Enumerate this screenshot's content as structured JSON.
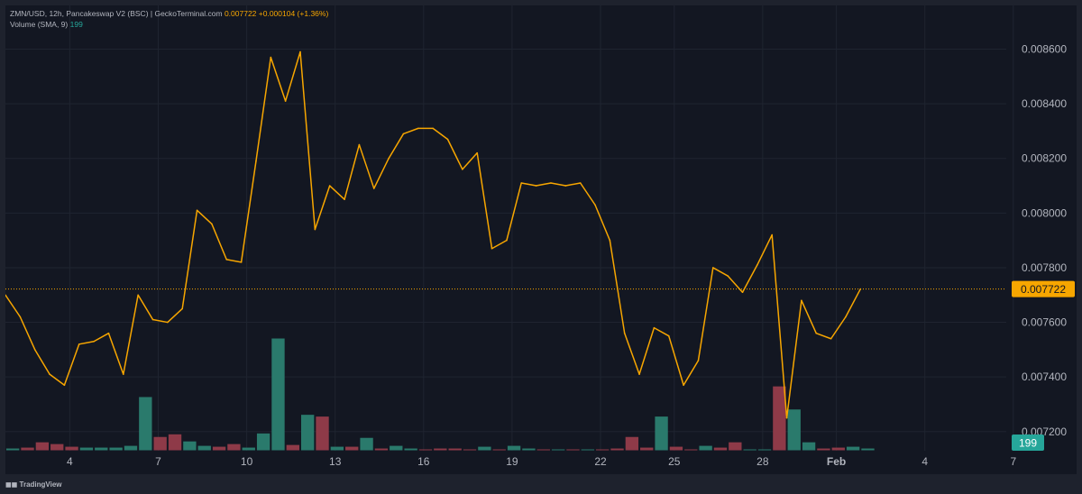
{
  "legend": {
    "symbol": "ZMN/USD, 12h, Pancakeswap V2 (BSC) | GeckoTerminal.com",
    "price": "0.007722",
    "change": "+0.000104 (+1.36%)",
    "volume_label": "Volume (SMA, 9)",
    "volume_value": "199"
  },
  "footer": {
    "logo": "TradingView"
  },
  "colors": {
    "line": "#f7a600",
    "vol_up": "#2a7a6c",
    "vol_down": "#8e3a48",
    "grid": "#1f2430",
    "price_tag": "#f7a600",
    "vol_tag": "#26a69a"
  },
  "chart_data": {
    "type": "line",
    "title": "ZMN/USD, 12h, Pancakeswap V2 (BSC) | GeckoTerminal.com",
    "x_ticks": [
      "4",
      "7",
      "10",
      "13",
      "16",
      "19",
      "22",
      "25",
      "28",
      "Feb",
      "4",
      "7"
    ],
    "y_ticks": [
      "0.007200",
      "0.007400",
      "0.007600",
      "0.007800",
      "0.008000",
      "0.008200",
      "0.008400",
      "0.008600"
    ],
    "ylim": [
      0.00713,
      0.00876
    ],
    "last_price_label": "0.007722",
    "volume_label": "199",
    "grid": true,
    "series": [
      {
        "values": [
          0.0077,
          0.00762,
          0.0075,
          0.00741,
          0.00737,
          0.00752,
          0.00753,
          0.00756,
          0.00741,
          0.0077,
          0.00761,
          0.0076,
          0.00765,
          0.00801,
          0.00796,
          0.00783,
          0.00782,
          0.00819,
          0.00857,
          0.00841,
          0.00859,
          0.00794,
          0.0081,
          0.00805,
          0.00825,
          0.00809,
          0.0082,
          0.00829,
          0.00831,
          0.00831,
          0.00827,
          0.00816,
          0.00822,
          0.00787,
          0.0079,
          0.00811,
          0.0081,
          0.00811,
          0.0081,
          0.00811,
          0.00803,
          0.0079,
          0.00756,
          0.00741,
          0.00758,
          0.00755,
          0.00737,
          0.00746,
          0.0078,
          0.00777,
          0.00771,
          0.00781,
          0.00792,
          0.00725,
          0.00768,
          0.00756,
          0.00754,
          0.00762,
          0.007722
        ]
      }
    ],
    "volume": {
      "values": [
        2,
        3,
        9,
        7,
        4,
        3,
        3,
        3,
        5,
        60,
        15,
        18,
        10,
        5,
        4,
        7,
        3,
        19,
        126,
        6,
        40,
        38,
        4,
        4,
        14,
        2,
        5,
        2,
        1,
        2,
        2,
        1,
        4,
        1,
        5,
        2,
        1,
        1,
        1,
        1,
        1,
        2,
        15,
        3,
        38,
        4,
        1,
        5,
        3,
        9,
        1,
        1,
        72,
        46,
        9,
        2,
        3,
        4,
        2
      ],
      "up": [
        1,
        0,
        0,
        0,
        0,
        1,
        1,
        1,
        1,
        1,
        0,
        0,
        1,
        1,
        0,
        0,
        1,
        1,
        1,
        0,
        1,
        0,
        1,
        0,
        1,
        0,
        1,
        1,
        0,
        0,
        0,
        0,
        1,
        0,
        1,
        1,
        0,
        1,
        0,
        1,
        0,
        0,
        0,
        0,
        1,
        0,
        0,
        1,
        0,
        0,
        1,
        1,
        0,
        1,
        1,
        0,
        0,
        1,
        1
      ]
    }
  }
}
